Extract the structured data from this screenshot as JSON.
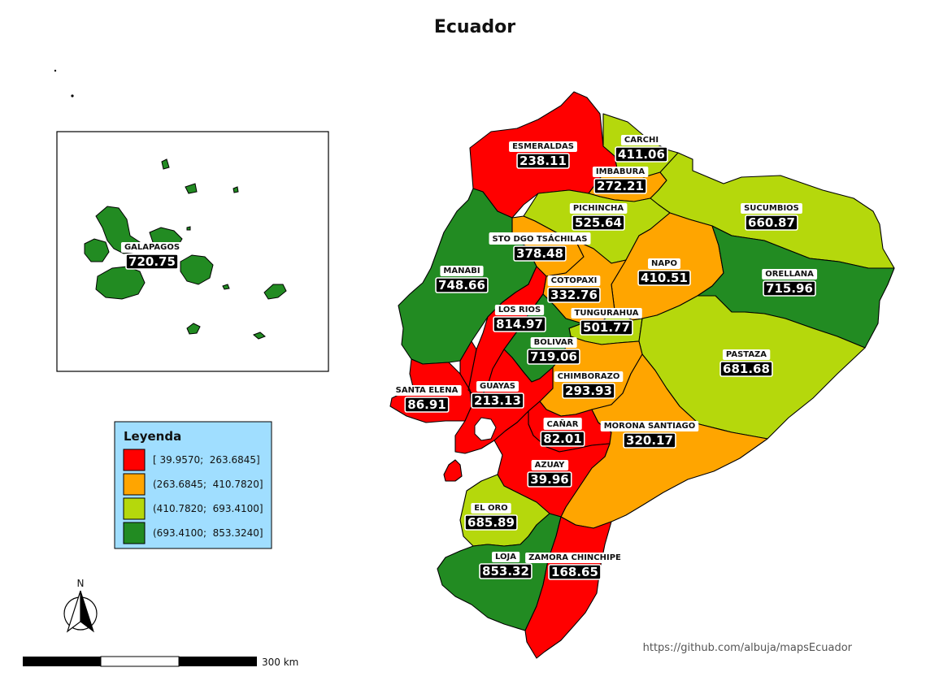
{
  "title": "Ecuador",
  "legend": {
    "title": "Leyenda",
    "classes": [
      {
        "label": "[ 39.9570;  263.6845]",
        "color": "#ff0000"
      },
      {
        "label": "(263.6845;  410.7820]",
        "color": "#ffa500"
      },
      {
        "label": "(410.7820;  693.4100]",
        "color": "#b5d80c"
      },
      {
        "label": "(693.4100;  853.3240]",
        "color": "#228b22"
      }
    ]
  },
  "provinces": [
    {
      "name": "GALAPAGOS",
      "value": "720.75"
    },
    {
      "name": "ESMERALDAS",
      "value": "238.11"
    },
    {
      "name": "CARCHI",
      "value": "411.06"
    },
    {
      "name": "IMBABURA",
      "value": "272.21"
    },
    {
      "name": "PICHINCHA",
      "value": "525.64"
    },
    {
      "name": "SUCUMBIOS",
      "value": "660.87"
    },
    {
      "name": "STO DGO TSÁCHILAS",
      "value": "378.48"
    },
    {
      "name": "NAPO",
      "value": "410.51"
    },
    {
      "name": "MANABI",
      "value": "748.66"
    },
    {
      "name": "ORELLANA",
      "value": "715.96"
    },
    {
      "name": "COTOPAXI",
      "value": "332.76"
    },
    {
      "name": "LOS RIOS",
      "value": "814.97"
    },
    {
      "name": "TUNGURAHUA",
      "value": "501.77"
    },
    {
      "name": "BOLIVAR",
      "value": "719.06"
    },
    {
      "name": "PASTAZA",
      "value": "681.68"
    },
    {
      "name": "CHIMBORAZO",
      "value": "293.93"
    },
    {
      "name": "SANTA ELENA",
      "value": "86.91"
    },
    {
      "name": "GUAYAS",
      "value": "213.13"
    },
    {
      "name": "CAÑAR",
      "value": "82.01"
    },
    {
      "name": "MORONA SANTIAGO",
      "value": "320.17"
    },
    {
      "name": "AZUAY",
      "value": "39.96"
    },
    {
      "name": "EL ORO",
      "value": "685.89"
    },
    {
      "name": "LOJA",
      "value": "853.32"
    },
    {
      "name": "ZAMORA CHINCHIPE",
      "value": "168.65"
    }
  ],
  "north_label": "N",
  "scale_label": "300 km",
  "credit": "https://github.com/albuja/mapsEcuador"
}
